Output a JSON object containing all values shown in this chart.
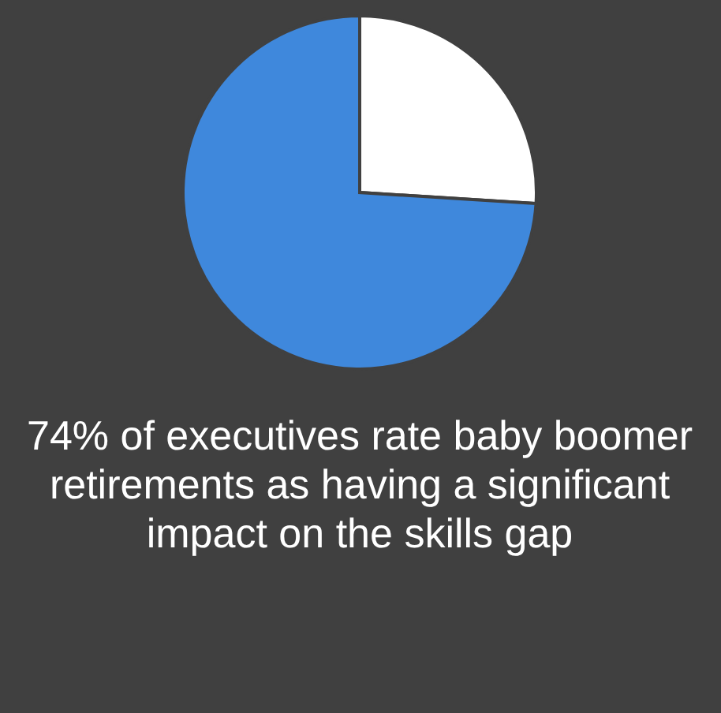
{
  "chart_data": {
    "type": "pie",
    "categories": [
      null,
      null
    ],
    "values": [
      26,
      74
    ],
    "colors": [
      "#ffffff",
      "#3f88dc"
    ],
    "annotations": [
      "74% of executives rate baby boomer retirements as having a significant impact on the skills gap"
    ]
  }
}
